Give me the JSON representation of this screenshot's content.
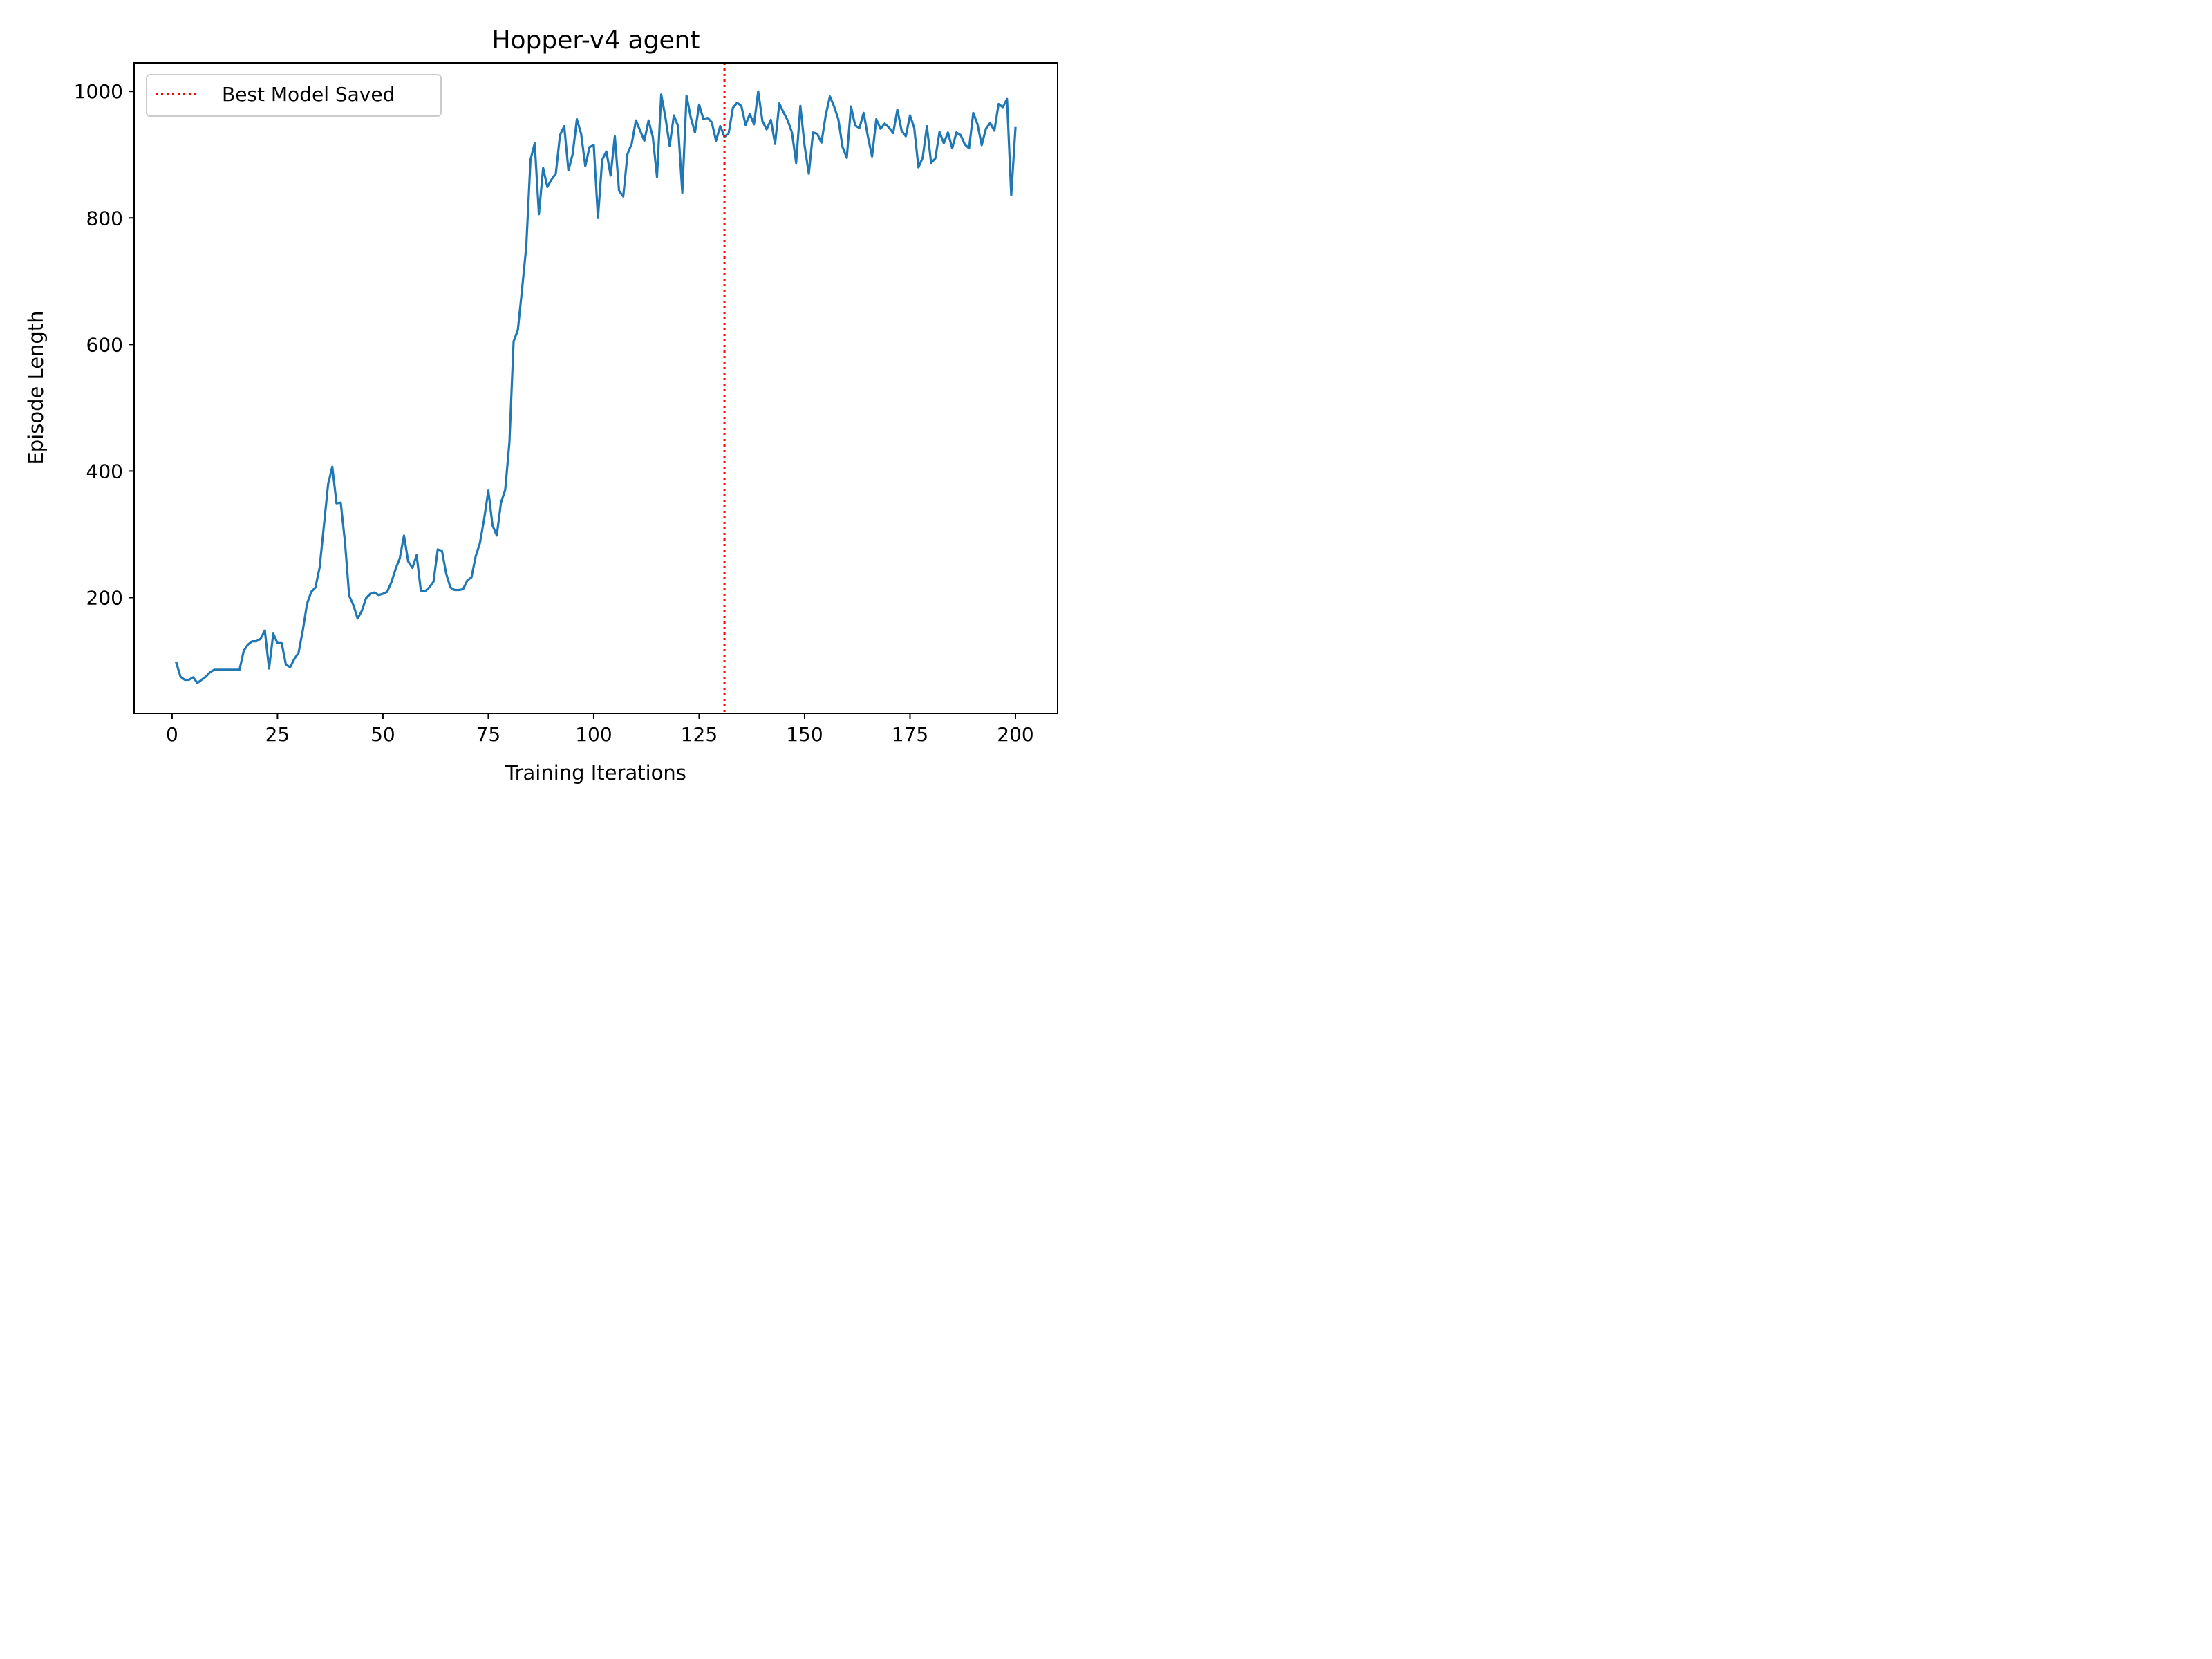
{
  "chart_data": {
    "type": "line",
    "title": "Hopper-v4 agent",
    "xlabel": "Training Iterations",
    "ylabel": "Episode Length",
    "xlim": [
      -9,
      210
    ],
    "ylim": [
      17,
      1045
    ],
    "xticks": [
      0,
      25,
      50,
      75,
      100,
      125,
      150,
      175,
      200
    ],
    "yticks": [
      200,
      400,
      600,
      800,
      1000
    ],
    "grid": false,
    "legend": {
      "position": "top-left",
      "entries": [
        "Best Model Saved"
      ]
    },
    "series": [
      {
        "color": "#1f77b4",
        "x": [
          1,
          2,
          3,
          4,
          5,
          6,
          7,
          8,
          9,
          10,
          11,
          12,
          13,
          14,
          15,
          16,
          17,
          18,
          19,
          20,
          21,
          22,
          23,
          24,
          25,
          26,
          27,
          28,
          29,
          30,
          31,
          32,
          33,
          34,
          35,
          36,
          37,
          38,
          39,
          40,
          41,
          42,
          43,
          44,
          45,
          46,
          47,
          48,
          49,
          50,
          51,
          52,
          53,
          54,
          55,
          56,
          57,
          58,
          59,
          60,
          61,
          62,
          63,
          64,
          65,
          66,
          67,
          68,
          69,
          70,
          71,
          72,
          73,
          74,
          75,
          76,
          77,
          78,
          79,
          80,
          81,
          82,
          83,
          84,
          85,
          86,
          87,
          88,
          89,
          90,
          91,
          92,
          93,
          94,
          95,
          96,
          97,
          98,
          99,
          100,
          101,
          102,
          103,
          104,
          105,
          106,
          107,
          108,
          109,
          110,
          111,
          112,
          113,
          114,
          115,
          116,
          117,
          118,
          119,
          120,
          121,
          122,
          123,
          124,
          125,
          126,
          127,
          128,
          129,
          130,
          131,
          132,
          133,
          134,
          135,
          136,
          137,
          138,
          139,
          140,
          141,
          142,
          143,
          144,
          145,
          146,
          147,
          148,
          149,
          150,
          151,
          152,
          153,
          154,
          155,
          156,
          157,
          158,
          159,
          160,
          161,
          162,
          163,
          164,
          165,
          166,
          167,
          168,
          169,
          170,
          171,
          172,
          173,
          174,
          175,
          176,
          177,
          178,
          179,
          180,
          181,
          182,
          183,
          184,
          185,
          186,
          187,
          188,
          189,
          190,
          191,
          192,
          193,
          194,
          195,
          196,
          197,
          198,
          199,
          200
        ],
        "y": [
          97,
          75,
          70,
          70,
          74,
          65,
          70,
          75,
          82,
          86,
          86,
          86,
          86,
          86,
          86,
          86,
          116,
          126,
          131,
          131,
          135,
          148,
          88,
          143,
          128,
          128,
          94,
          90,
          103,
          113,
          148,
          190,
          209,
          216,
          248,
          313,
          379,
          407,
          349,
          350,
          288,
          203,
          188,
          167,
          179,
          199,
          206,
          208,
          204,
          206,
          209,
          224,
          245,
          262,
          298,
          257,
          247,
          267,
          211,
          210,
          216,
          225,
          276,
          274,
          238,
          216,
          212,
          212,
          213,
          227,
          232,
          265,
          286,
          324,
          369,
          314,
          298,
          350,
          370,
          445,
          605,
          623,
          687,
          755,
          892,
          918,
          806,
          879,
          849,
          861,
          870,
          931,
          945,
          875,
          901,
          956,
          933,
          882,
          912,
          915,
          800,
          892,
          905,
          867,
          929,
          843,
          834,
          901,
          917,
          954,
          938,
          922,
          954,
          928,
          865,
          995,
          959,
          914,
          962,
          945,
          840,
          993,
          959,
          935,
          979,
          956,
          958,
          951,
          922,
          945,
          928,
          934,
          974,
          982,
          977,
          947,
          964,
          948,
          1000,
          953,
          940,
          955,
          917,
          981,
          967,
          954,
          935,
          887,
          977,
          914,
          870,
          935,
          933,
          919,
          962,
          992,
          976,
          956,
          912,
          895,
          976,
          946,
          942,
          966,
          929,
          897,
          956,
          941,
          949,
          943,
          934,
          971,
          938,
          929,
          962,
          942,
          880,
          895,
          945,
          887,
          894,
          936,
          918,
          935,
          910,
          935,
          931,
          916,
          910,
          966,
          948,
          915,
          941,
          950,
          938,
          980,
          975,
          988,
          836,
          942
        ]
      }
    ],
    "annotations": [
      {
        "type": "vline",
        "x": 131,
        "color": "#ff0000",
        "style": "dotted",
        "label": "Best Model Saved"
      }
    ]
  }
}
